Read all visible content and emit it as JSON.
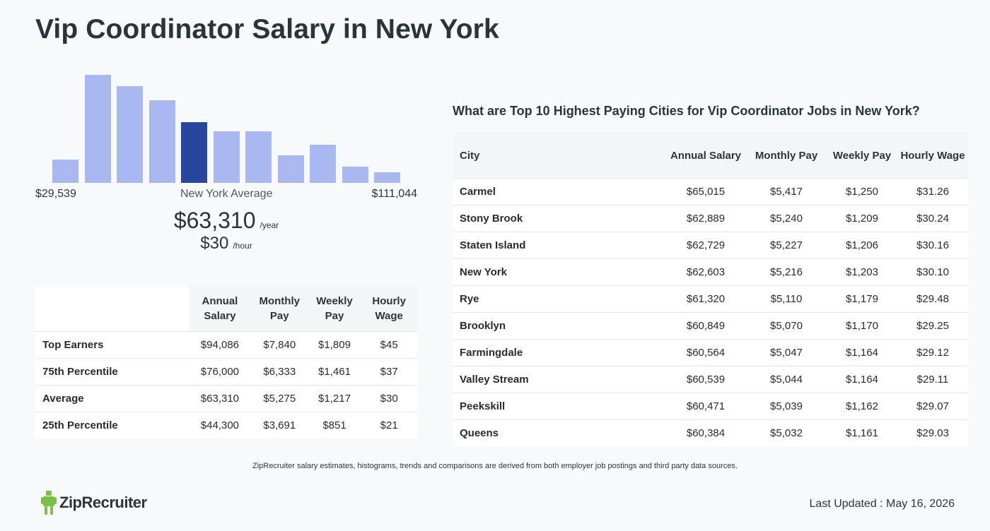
{
  "title": "Vip Coordinator Salary in New York",
  "histogram": {
    "min_label": "$29,539",
    "max_label": "$111,044",
    "avg_label": "New York Average",
    "bars": [
      0.215,
      1.0,
      0.895,
      0.765,
      0.56,
      0.48,
      0.48,
      0.255,
      0.35,
      0.15,
      0.1
    ],
    "active_index": 4
  },
  "average": {
    "yearly": "$63,310",
    "yearly_unit": "/year",
    "hourly": "$30",
    "hourly_unit": "/hour"
  },
  "percentile_table": {
    "headers": [
      "Annual Salary",
      "Monthly Pay",
      "Weekly Pay",
      "Hourly Wage"
    ],
    "rows": [
      {
        "label": "Top Earners",
        "annual": "$94,086",
        "monthly": "$7,840",
        "weekly": "$1,809",
        "hourly": "$45"
      },
      {
        "label": "75th Percentile",
        "annual": "$76,000",
        "monthly": "$6,333",
        "weekly": "$1,461",
        "hourly": "$37"
      },
      {
        "label": "Average",
        "annual": "$63,310",
        "monthly": "$5,275",
        "weekly": "$1,217",
        "hourly": "$30"
      },
      {
        "label": "25th Percentile",
        "annual": "$44,300",
        "monthly": "$3,691",
        "weekly": "$851",
        "hourly": "$21"
      }
    ]
  },
  "cities": {
    "heading": "What are Top 10 Highest Paying Cities for Vip Coordinator Jobs in New York?",
    "headers": [
      "City",
      "Annual Salary",
      "Monthly Pay",
      "Weekly Pay",
      "Hourly Wage"
    ],
    "rows": [
      {
        "city": "Carmel",
        "annual": "$65,015",
        "monthly": "$5,417",
        "weekly": "$1,250",
        "hourly": "$31.26"
      },
      {
        "city": "Stony Brook",
        "annual": "$62,889",
        "monthly": "$5,240",
        "weekly": "$1,209",
        "hourly": "$30.24"
      },
      {
        "city": "Staten Island",
        "annual": "$62,729",
        "monthly": "$5,227",
        "weekly": "$1,206",
        "hourly": "$30.16"
      },
      {
        "city": "New York",
        "annual": "$62,603",
        "monthly": "$5,216",
        "weekly": "$1,203",
        "hourly": "$30.10"
      },
      {
        "city": "Rye",
        "annual": "$61,320",
        "monthly": "$5,110",
        "weekly": "$1,179",
        "hourly": "$29.48"
      },
      {
        "city": "Brooklyn",
        "annual": "$60,849",
        "monthly": "$5,070",
        "weekly": "$1,170",
        "hourly": "$29.25"
      },
      {
        "city": "Farmingdale",
        "annual": "$60,564",
        "monthly": "$5,047",
        "weekly": "$1,164",
        "hourly": "$29.12"
      },
      {
        "city": "Valley Stream",
        "annual": "$60,539",
        "monthly": "$5,044",
        "weekly": "$1,164",
        "hourly": "$29.11"
      },
      {
        "city": "Peekskill",
        "annual": "$60,471",
        "monthly": "$5,039",
        "weekly": "$1,162",
        "hourly": "$29.07"
      },
      {
        "city": "Queens",
        "annual": "$60,384",
        "monthly": "$5,032",
        "weekly": "$1,161",
        "hourly": "$29.03"
      }
    ]
  },
  "footer": {
    "disclaimer": "ZipRecruiter salary estimates, histograms, trends and comparisons are derived from both employer job postings and third party data sources.",
    "logo_text": "ZipRecruiter",
    "logo_icon": "ziprecruiter-mascot-icon",
    "last_updated": "Last Updated : May 16, 2026"
  },
  "colors": {
    "bar": "#aab8f1",
    "bar_active": "#2746a0",
    "logo_green": "#7bc143"
  }
}
